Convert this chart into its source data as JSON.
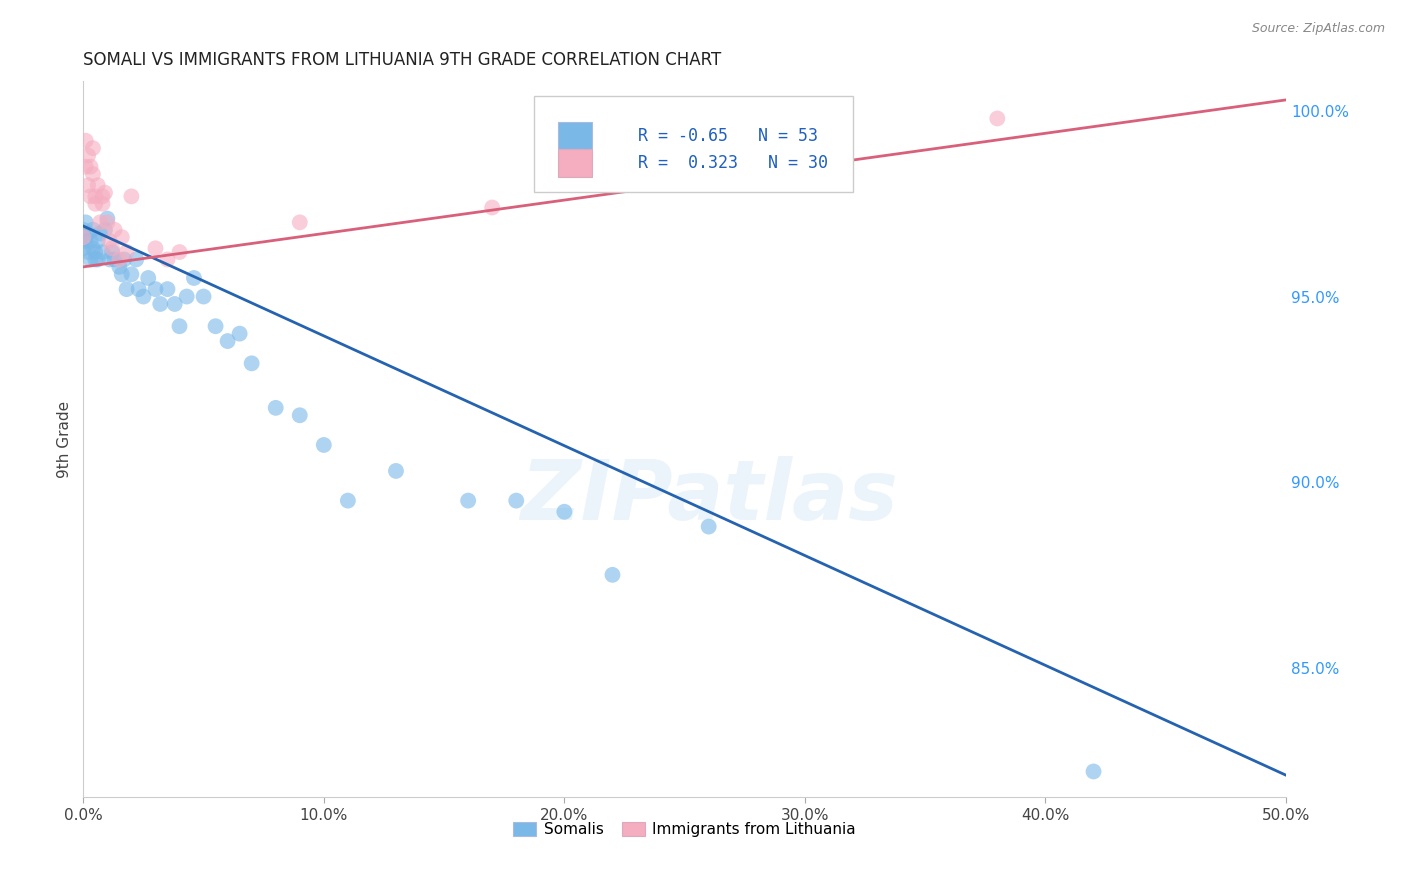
{
  "title": "SOMALI VS IMMIGRANTS FROM LITHUANIA 9TH GRADE CORRELATION CHART",
  "source": "Source: ZipAtlas.com",
  "ylabel_label": "9th Grade",
  "xlim": [
    0.0,
    0.5
  ],
  "ylim": [
    0.815,
    1.008
  ],
  "xtick_labels": [
    "0.0%",
    "10.0%",
    "20.0%",
    "30.0%",
    "40.0%",
    "50.0%"
  ],
  "xtick_values": [
    0.0,
    0.1,
    0.2,
    0.3,
    0.4,
    0.5
  ],
  "ytick_labels": [
    "85.0%",
    "90.0%",
    "95.0%",
    "100.0%"
  ],
  "ytick_values": [
    0.85,
    0.9,
    0.95,
    1.0
  ],
  "blue_color": "#7ab8e8",
  "pink_color": "#f5adc0",
  "blue_line_color": "#2563b0",
  "pink_line_color": "#d9607a",
  "R_blue": -0.65,
  "N_blue": 53,
  "R_pink": 0.323,
  "N_pink": 30,
  "legend_label_blue": "Somalis",
  "legend_label_pink": "Immigrants from Lithuania",
  "blue_x": [
    0.0,
    0.0,
    0.001,
    0.001,
    0.002,
    0.002,
    0.003,
    0.003,
    0.004,
    0.004,
    0.005,
    0.005,
    0.006,
    0.006,
    0.007,
    0.008,
    0.009,
    0.01,
    0.011,
    0.012,
    0.013,
    0.015,
    0.016,
    0.017,
    0.018,
    0.02,
    0.022,
    0.023,
    0.025,
    0.027,
    0.03,
    0.032,
    0.035,
    0.038,
    0.04,
    0.043,
    0.046,
    0.05,
    0.055,
    0.06,
    0.065,
    0.07,
    0.08,
    0.09,
    0.1,
    0.11,
    0.13,
    0.16,
    0.18,
    0.2,
    0.22,
    0.26,
    0.42
  ],
  "blue_y": [
    0.968,
    0.963,
    0.97,
    0.965,
    0.967,
    0.962,
    0.965,
    0.96,
    0.963,
    0.968,
    0.962,
    0.96,
    0.965,
    0.96,
    0.967,
    0.962,
    0.968,
    0.971,
    0.96,
    0.962,
    0.96,
    0.958,
    0.956,
    0.96,
    0.952,
    0.956,
    0.96,
    0.952,
    0.95,
    0.955,
    0.952,
    0.948,
    0.952,
    0.948,
    0.942,
    0.95,
    0.955,
    0.95,
    0.942,
    0.938,
    0.94,
    0.932,
    0.92,
    0.918,
    0.91,
    0.895,
    0.903,
    0.895,
    0.895,
    0.892,
    0.875,
    0.888,
    0.822
  ],
  "pink_x": [
    0.0,
    0.001,
    0.001,
    0.002,
    0.002,
    0.003,
    0.003,
    0.004,
    0.004,
    0.005,
    0.005,
    0.006,
    0.007,
    0.008,
    0.008,
    0.009,
    0.01,
    0.011,
    0.012,
    0.013,
    0.015,
    0.016,
    0.018,
    0.02,
    0.03,
    0.035,
    0.04,
    0.09,
    0.17,
    0.38
  ],
  "pink_y": [
    0.966,
    0.992,
    0.985,
    0.988,
    0.98,
    0.985,
    0.977,
    0.983,
    0.99,
    0.977,
    0.975,
    0.98,
    0.97,
    0.975,
    0.977,
    0.978,
    0.97,
    0.965,
    0.963,
    0.968,
    0.96,
    0.966,
    0.962,
    0.977,
    0.963,
    0.96,
    0.962,
    0.97,
    0.974,
    0.998
  ],
  "blue_line_x0": 0.0,
  "blue_line_y0": 0.969,
  "blue_line_x1": 0.5,
  "blue_line_y1": 0.821,
  "pink_line_x0": 0.0,
  "pink_line_y0": 0.958,
  "pink_line_x1": 0.5,
  "pink_line_y1": 1.003,
  "watermark_text": "ZIPatlas",
  "background_color": "#ffffff",
  "grid_color": "#cccccc"
}
